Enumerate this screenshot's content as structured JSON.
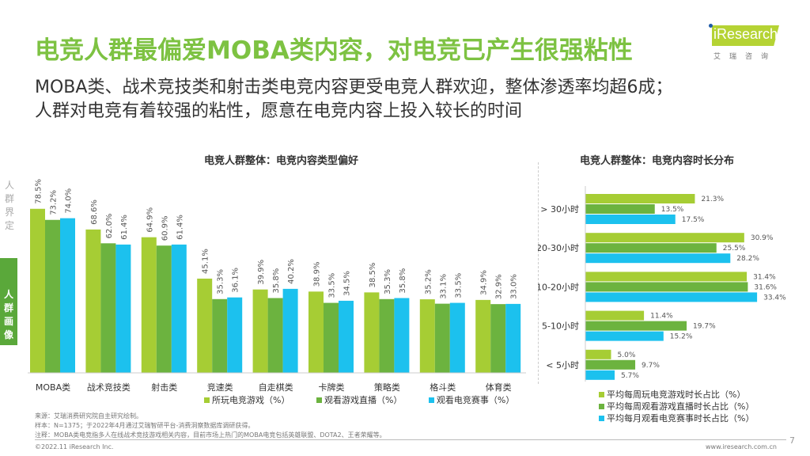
{
  "title": "电竞人群最偏爱MOBA类内容，对电竞已产生很强粘性",
  "subtitle1": "MOBA类、战术竞技类和射击类电竞内容更受电竞人群欢迎，整体渗透率均超6成；",
  "subtitle2": "人群对电竞有着较强的粘性，愿意在电竞内容上投入较长的时间",
  "logo": {
    "brand": "iResearch",
    "cn": "艾瑞咨询"
  },
  "side": {
    "item1": "人群界定",
    "item2": "人群画像"
  },
  "colors": {
    "lime": "#a6cd34",
    "green": "#6cb33f",
    "cyan": "#1cc1ee"
  },
  "chart_data": [
    {
      "type": "bar",
      "title": "电竞人群整体：电竞内容类型偏好",
      "categories": [
        "MOBA类",
        "战术竞技类",
        "射击类",
        "竞速类",
        "自走棋类",
        "卡牌类",
        "策略类",
        "格斗类",
        "体育类"
      ],
      "series": [
        {
          "name": "所玩电竞游戏（%）",
          "values": [
            78.5,
            68.6,
            64.9,
            45.1,
            39.9,
            38.9,
            38.5,
            35.2,
            34.9
          ]
        },
        {
          "name": "观看游戏直播（%）",
          "values": [
            73.2,
            62.0,
            60.9,
            35.3,
            35.8,
            33.5,
            35.3,
            33.1,
            32.9
          ]
        },
        {
          "name": "观看电竞赛事（%）",
          "values": [
            74.0,
            61.4,
            61.4,
            36.1,
            40.2,
            34.5,
            35.8,
            33.5,
            33.0
          ]
        }
      ],
      "ylim": [
        0,
        80
      ],
      "grid": false,
      "legend": "bottom"
    },
    {
      "type": "bar",
      "orientation": "horizontal",
      "title": "电竞人群整体：电竞内容时长分布",
      "categories": [
        "> 30小时",
        "20-30小时",
        "10-20小时",
        "5-10小时",
        "< 5小时"
      ],
      "series": [
        {
          "name": "平均每周玩电竞游戏时长占比（%）",
          "values": [
            21.3,
            30.9,
            31.4,
            11.4,
            5.0
          ]
        },
        {
          "name": "平均每周观看游戏直播时长占比（%）",
          "values": [
            13.5,
            25.5,
            31.6,
            19.7,
            9.7
          ]
        },
        {
          "name": "平均每月观看电竞赛事时长占比（%）",
          "values": [
            17.5,
            28.2,
            33.4,
            15.2,
            5.7
          ]
        }
      ],
      "xlim": [
        0,
        35
      ],
      "grid": false,
      "legend": "bottom"
    }
  ],
  "footer": {
    "source": "来源：艾瑞消费研究院自主研究绘制。",
    "sample": "样本：N=1375；于2022年4月通过艾瑞智研平台-消费洞察数据库调研获得。",
    "note": "注释：MOBA类电竞指多人在线战术竞技游戏相关内容，目前市场上热门的MOBA电竞包括英雄联盟、DOTA2、王者荣耀等。",
    "copyright": "©2022.11 iResearch Inc.",
    "site": "www.iresearch.com.cn",
    "page": "7"
  }
}
